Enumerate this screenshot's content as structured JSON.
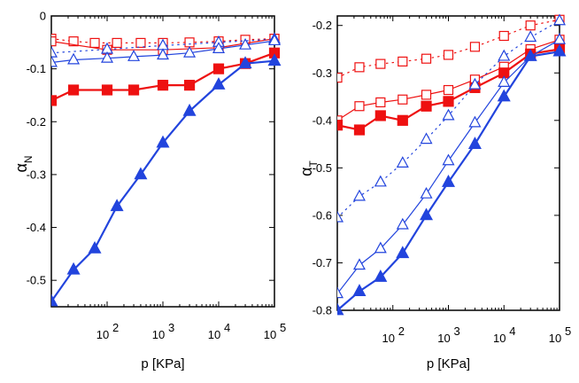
{
  "colors": {
    "red": "#ee1111",
    "blue": "#2244dd",
    "axis": "#000000"
  },
  "chart_data": [
    {
      "type": "line",
      "title": "",
      "xlabel": "p [KPa]",
      "ylabel_symbol": "α",
      "ylabel_sub": "N",
      "xscale": "log",
      "xlim": [
        10,
        100000
      ],
      "ylim": [
        -0.55,
        0
      ],
      "yticks": [
        0,
        -0.1,
        -0.2,
        -0.3,
        -0.4,
        -0.5
      ],
      "ytick_labels": [
        "0",
        "-0.1",
        "-0.2",
        "-0.3",
        "-0.4",
        "-0.5"
      ],
      "xtick_labels": [
        {
          "x": 100,
          "base": "10",
          "exp": "2"
        },
        {
          "x": 1000,
          "base": "10",
          "exp": "3"
        },
        {
          "x": 10000,
          "base": "10",
          "exp": "4"
        },
        {
          "x": 100000,
          "base": "10",
          "exp": "5"
        }
      ],
      "x": [
        10,
        25,
        50,
        100,
        250,
        500,
        1000,
        2500,
        5000,
        10000,
        25000,
        50000,
        100000
      ],
      "series": [
        {
          "name": "red-open-dotted",
          "color": "red",
          "marker": "square-open",
          "line": "dotted",
          "width": 1.2,
          "x": [
            10,
            25,
            60,
            150,
            400,
            1000,
            3000,
            10000,
            30000,
            100000
          ],
          "values": [
            -0.043,
            -0.048,
            -0.051,
            -0.051,
            -0.051,
            -0.051,
            -0.05,
            -0.048,
            -0.045,
            -0.043
          ]
        },
        {
          "name": "red-open-solid",
          "color": "red",
          "marker": "square-open",
          "line": "solid",
          "width": 1.2,
          "x": [
            10,
            100,
            1000,
            10000,
            100000
          ],
          "values": [
            -0.048,
            -0.064,
            -0.064,
            -0.06,
            -0.043
          ]
        },
        {
          "name": "red-filled",
          "color": "red",
          "marker": "square-filled",
          "line": "solid",
          "width": 2.2,
          "x": [
            10,
            25,
            100,
            300,
            1000,
            3000,
            10000,
            30000,
            100000
          ],
          "values": [
            -0.16,
            -0.14,
            -0.14,
            -0.14,
            -0.131,
            -0.131,
            -0.1,
            -0.09,
            -0.07
          ]
        },
        {
          "name": "blue-open-dotted",
          "color": "blue",
          "marker": "triangle-open",
          "line": "dotted",
          "width": 1.2,
          "x": [
            10,
            100,
            1000,
            10000,
            100000
          ],
          "values": [
            -0.07,
            -0.063,
            -0.056,
            -0.05,
            -0.044
          ]
        },
        {
          "name": "blue-open-solid",
          "color": "blue",
          "marker": "triangle-open",
          "line": "solid",
          "width": 1.2,
          "x": [
            10,
            25,
            100,
            300,
            1000,
            3000,
            10000,
            30000,
            100000
          ],
          "values": [
            -0.088,
            -0.083,
            -0.08,
            -0.077,
            -0.074,
            -0.07,
            -0.062,
            -0.055,
            -0.047
          ]
        },
        {
          "name": "blue-filled",
          "color": "blue",
          "marker": "triangle-filled",
          "line": "solid",
          "width": 2.2,
          "x": [
            10,
            25,
            60,
            150,
            400,
            1000,
            3000,
            10000,
            30000,
            100000
          ],
          "values": [
            -0.54,
            -0.48,
            -0.44,
            -0.36,
            -0.3,
            -0.24,
            -0.18,
            -0.13,
            -0.09,
            -0.085
          ]
        }
      ]
    },
    {
      "type": "line",
      "title": "",
      "xlabel": "p [KPa]",
      "ylabel_symbol": "α",
      "ylabel_sub": "T",
      "xscale": "log",
      "xlim": [
        10,
        100000
      ],
      "ylim": [
        -0.8,
        -0.18
      ],
      "yticks": [
        -0.2,
        -0.3,
        -0.4,
        -0.5,
        -0.6,
        -0.7,
        -0.8
      ],
      "ytick_labels": [
        "-0.2",
        "-0.3",
        "-0.4",
        "-0.5",
        "-0.6",
        "-0.7",
        "-0.8"
      ],
      "xtick_labels": [
        {
          "x": 100,
          "base": "10",
          "exp": "2"
        },
        {
          "x": 1000,
          "base": "10",
          "exp": "3"
        },
        {
          "x": 10000,
          "base": "10",
          "exp": "4"
        },
        {
          "x": 100000,
          "base": "10",
          "exp": "5"
        }
      ],
      "series": [
        {
          "name": "red-open-dotted",
          "color": "red",
          "marker": "square-open",
          "line": "dotted",
          "width": 1.2,
          "x": [
            10,
            25,
            60,
            150,
            400,
            1000,
            3000,
            10000,
            30000,
            100000
          ],
          "values": [
            -0.31,
            -0.288,
            -0.281,
            -0.276,
            -0.27,
            -0.262,
            -0.245,
            -0.222,
            -0.2,
            -0.188
          ]
        },
        {
          "name": "red-open-solid",
          "color": "red",
          "marker": "square-open",
          "line": "solid",
          "width": 1.2,
          "x": [
            10,
            25,
            60,
            150,
            400,
            1000,
            3000,
            10000,
            30000,
            100000
          ],
          "values": [
            -0.4,
            -0.37,
            -0.362,
            -0.356,
            -0.346,
            -0.336,
            -0.314,
            -0.287,
            -0.25,
            -0.23
          ]
        },
        {
          "name": "red-filled",
          "color": "red",
          "marker": "square-filled",
          "line": "solid",
          "width": 2.2,
          "x": [
            10,
            25,
            60,
            150,
            400,
            1000,
            3000,
            10000,
            30000,
            100000
          ],
          "values": [
            -0.41,
            -0.42,
            -0.39,
            -0.4,
            -0.37,
            -0.36,
            -0.331,
            -0.3,
            -0.26,
            -0.25
          ]
        },
        {
          "name": "blue-open-dotted",
          "color": "blue",
          "marker": "triangle-open",
          "line": "dotted",
          "width": 1.2,
          "x": [
            10,
            25,
            60,
            150,
            400,
            1000,
            3000,
            10000,
            30000,
            100000
          ],
          "values": [
            -0.605,
            -0.56,
            -0.53,
            -0.49,
            -0.44,
            -0.39,
            -0.325,
            -0.265,
            -0.225,
            -0.19
          ]
        },
        {
          "name": "blue-open-solid",
          "color": "blue",
          "marker": "triangle-open",
          "line": "solid",
          "width": 1.2,
          "x": [
            10,
            25,
            60,
            150,
            400,
            1000,
            3000,
            10000,
            30000,
            100000
          ],
          "values": [
            -0.765,
            -0.705,
            -0.67,
            -0.62,
            -0.555,
            -0.485,
            -0.405,
            -0.32,
            -0.265,
            -0.23
          ]
        },
        {
          "name": "blue-filled",
          "color": "blue",
          "marker": "triangle-filled",
          "line": "solid",
          "width": 2.2,
          "x": [
            10,
            25,
            60,
            150,
            400,
            1000,
            3000,
            10000,
            30000,
            100000
          ],
          "values": [
            -0.8,
            -0.76,
            -0.73,
            -0.68,
            -0.6,
            -0.53,
            -0.45,
            -0.35,
            -0.265,
            -0.255
          ]
        }
      ]
    }
  ]
}
